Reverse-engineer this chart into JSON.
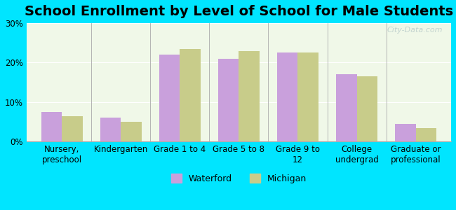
{
  "title": "School Enrollment by Level of School for Male Students",
  "categories": [
    "Nursery,\npreschool",
    "Kindergarten",
    "Grade 1 to 4",
    "Grade 5 to 8",
    "Grade 9 to\n12",
    "College\nundergrad",
    "Graduate or\nprofessional"
  ],
  "waterford": [
    7.5,
    6.0,
    22.0,
    21.0,
    22.5,
    17.0,
    4.5
  ],
  "michigan": [
    6.5,
    5.0,
    23.5,
    23.0,
    22.5,
    16.5,
    3.5
  ],
  "waterford_color": "#c9a0dc",
  "michigan_color": "#c8cc8a",
  "background_outer": "#00e5ff",
  "background_inner": "#f0f8e8",
  "ylim": [
    0,
    30
  ],
  "yticks": [
    0,
    10,
    20,
    30
  ],
  "ytick_labels": [
    "0%",
    "10%",
    "20%",
    "30%"
  ],
  "bar_width": 0.35,
  "legend_labels": [
    "Waterford",
    "Michigan"
  ],
  "title_fontsize": 14,
  "tick_fontsize": 8.5,
  "legend_fontsize": 9,
  "watermark": "City-Data.com"
}
